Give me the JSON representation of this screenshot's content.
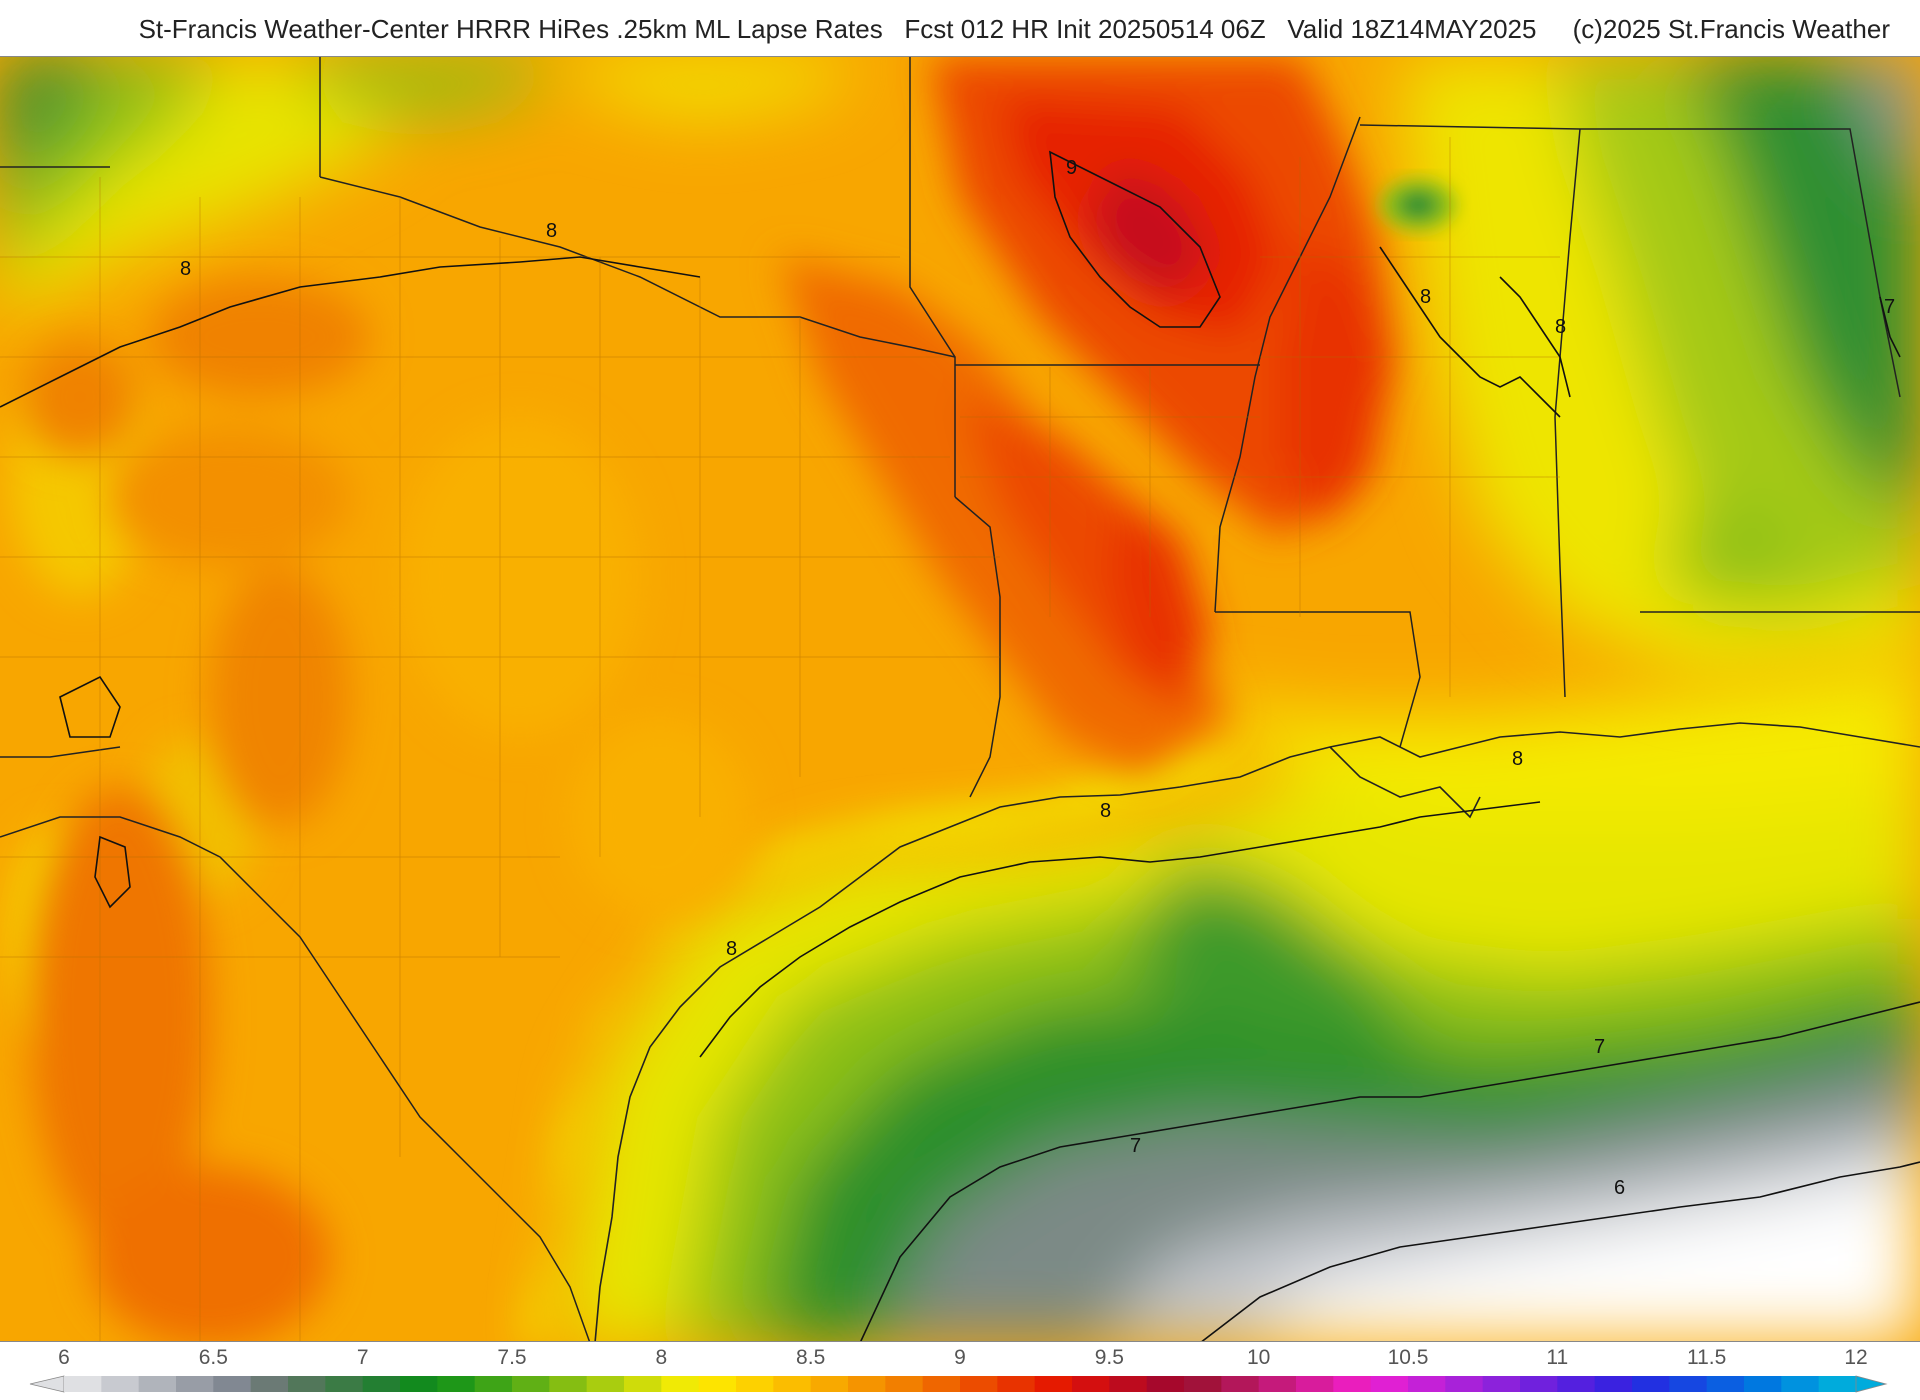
{
  "title": "St-Francis Weather-Center HRRR HiRes .25km ML Lapse Rates   Fcst 012 HR Init 20250514 06Z   Valid 18Z14MAY2025     (c)2025 St.Francis Weather",
  "colorbar": {
    "min": 6,
    "max": 12,
    "tick_labels": [
      "6",
      "6.5",
      "7",
      "7.5",
      "8",
      "8.5",
      "9",
      "9.5",
      "10",
      "10.5",
      "11",
      "11.5",
      "12"
    ],
    "colors": [
      "#dfe0e3",
      "#c8cad0",
      "#b0b4bb",
      "#989da6",
      "#818892",
      "#6b7a75",
      "#52775a",
      "#3b7b45",
      "#237f32",
      "#128a1e",
      "#1e9718",
      "#3ea417",
      "#60b015",
      "#85be12",
      "#a9cd0f",
      "#cfdc0a",
      "#f0ea05",
      "#fde400",
      "#fdd100",
      "#fbbd00",
      "#f8a900",
      "#f59400",
      "#f27f00",
      "#ef6600",
      "#ec4c00",
      "#e83300",
      "#e51a00",
      "#d40f0f",
      "#bd0b1e",
      "#a6082c",
      "#a1123a",
      "#b3175a",
      "#c51a7b",
      "#d81c9c",
      "#ea1ebd",
      "#e020d3",
      "#c421d7",
      "#a822d9",
      "#8c22db",
      "#7021dd",
      "#5420df",
      "#3a22e0",
      "#2230e1",
      "#1647e1",
      "#0b5fe1",
      "#0078e0",
      "#0092df",
      "#00abdc"
    ]
  },
  "contour_labels": [
    {
      "text": "9"
    },
    {
      "text": "8"
    },
    {
      "text": "8"
    },
    {
      "text": "8"
    },
    {
      "text": "8"
    },
    {
      "text": "8"
    },
    {
      "text": "8"
    },
    {
      "text": "8"
    },
    {
      "text": "7"
    },
    {
      "text": "7"
    },
    {
      "text": "7"
    },
    {
      "text": "6"
    }
  ]
}
